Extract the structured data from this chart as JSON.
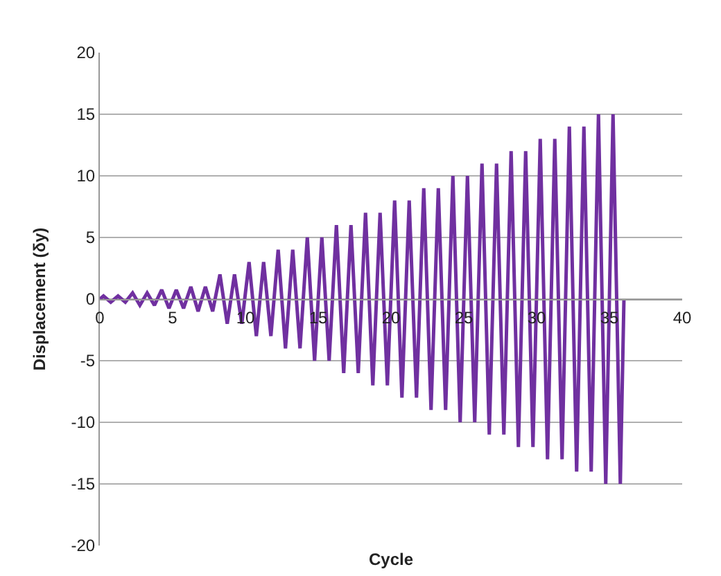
{
  "chart_data": {
    "type": "line",
    "xlabel": "Cycle",
    "ylabel": "Displacement (δy)",
    "x": [
      0,
      0.25,
      0.75,
      1.25,
      1.75,
      2.25,
      2.75,
      3.25,
      3.75,
      4.25,
      4.75,
      5.25,
      5.75,
      6.25,
      6.75,
      7.25,
      7.75,
      8.25,
      8.75,
      9.25,
      9.75,
      10.25,
      10.75,
      11.25,
      11.75,
      12.25,
      12.75,
      13.25,
      13.75,
      14.25,
      14.75,
      15.25,
      15.75,
      16.25,
      16.75,
      17.25,
      17.75,
      18.25,
      18.75,
      19.25,
      19.75,
      20.25,
      20.75,
      21.25,
      21.75,
      22.25,
      22.75,
      23.25,
      23.75,
      24.25,
      24.75,
      25.25,
      25.75,
      26.25,
      26.75,
      27.25,
      27.75,
      28.25,
      28.75,
      29.25,
      29.75,
      30.25,
      30.75,
      31.25,
      31.75,
      32.25,
      32.75,
      33.25,
      33.75,
      34.25,
      34.75,
      35.25,
      35.75,
      36
    ],
    "series": [
      {
        "color": "#7030a0",
        "values": [
          0,
          0.25,
          -0.25,
          0.25,
          -0.25,
          0.5,
          -0.5,
          0.5,
          -0.5,
          0.75,
          -0.75,
          0.75,
          -0.75,
          1,
          -1,
          1,
          -1,
          2,
          -2,
          2,
          -2,
          3,
          -3,
          3,
          -3,
          4,
          -4,
          4,
          -4,
          5,
          -5,
          5,
          -5,
          6,
          -6,
          6,
          -6,
          7,
          -7,
          7,
          -7,
          8,
          -8,
          8,
          -8,
          9,
          -9,
          9,
          -9,
          10,
          -10,
          10,
          -10,
          11,
          -11,
          11,
          -11,
          12,
          -12,
          12,
          -12,
          13,
          -13,
          13,
          -13,
          14,
          -14,
          14,
          -14,
          15,
          -15,
          15,
          -15,
          0
        ]
      }
    ],
    "xlim": [
      0,
      40
    ],
    "xticks": [
      0,
      5,
      10,
      15,
      20,
      25,
      30,
      35,
      40
    ],
    "ylim": [
      -20,
      20
    ],
    "yticks": [
      -20,
      -15,
      -10,
      -5,
      0,
      5,
      10,
      15,
      20
    ],
    "grid": "y",
    "marker": "none",
    "line_style": "solid"
  }
}
